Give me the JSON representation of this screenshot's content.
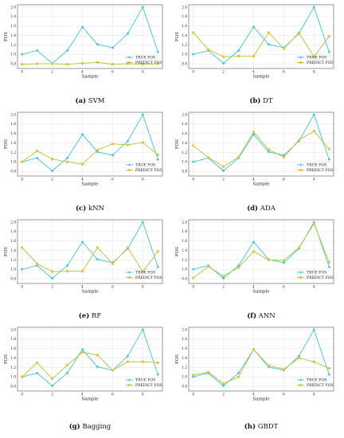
{
  "chart_data": [
    {
      "id": "svm",
      "caption_letter": "(a)",
      "caption_name": "SVM",
      "type": "line",
      "xlabel": "Sample",
      "ylabel": "FOS",
      "xlim": [
        -0.3,
        9.3
      ],
      "ylim": [
        0.7,
        2.05
      ],
      "xticks": [
        0,
        2,
        4,
        6,
        8
      ],
      "yticks": [
        0.8,
        1.0,
        1.2,
        1.4,
        1.6,
        1.8,
        2.0
      ],
      "legend_position": "bottom-right",
      "x": [
        0,
        1,
        2,
        3,
        4,
        5,
        6,
        7,
        8,
        9
      ],
      "series": [
        {
          "name": "TRUE FOS",
          "values": [
            1.0,
            1.08,
            0.81,
            1.08,
            1.58,
            1.21,
            1.14,
            1.44,
            2.0,
            1.05
          ]
        },
        {
          "name": "PREDICT FOS",
          "values": [
            0.79,
            0.8,
            0.8,
            0.79,
            0.81,
            0.83,
            0.79,
            0.8,
            0.79,
            0.8
          ]
        }
      ]
    },
    {
      "id": "dt",
      "caption_letter": "(b)",
      "caption_name": "DT",
      "type": "line",
      "xlabel": "Sample",
      "ylabel": "FOS",
      "xlim": [
        -0.3,
        9.3
      ],
      "ylim": [
        0.7,
        2.05
      ],
      "xticks": [
        0,
        2,
        4,
        6,
        8
      ],
      "yticks": [
        0.8,
        1.0,
        1.2,
        1.4,
        1.6,
        1.8,
        2.0
      ],
      "legend_position": "bottom-right",
      "x": [
        0,
        1,
        2,
        3,
        4,
        5,
        6,
        7,
        8,
        9
      ],
      "series": [
        {
          "name": "TRUE FOS",
          "values": [
            1.0,
            1.08,
            0.81,
            1.08,
            1.58,
            1.21,
            1.14,
            1.44,
            2.0,
            1.05
          ]
        },
        {
          "name": "PREDICT FOS",
          "values": [
            1.46,
            1.1,
            0.95,
            0.96,
            0.96,
            1.46,
            1.12,
            1.46,
            0.95,
            1.38
          ]
        }
      ]
    },
    {
      "id": "knn",
      "caption_letter": "(c)",
      "caption_name": "kNN",
      "type": "line",
      "xlabel": "Sample",
      "ylabel": "FOS",
      "xlim": [
        -0.3,
        9.3
      ],
      "ylim": [
        0.7,
        2.05
      ],
      "xticks": [
        0,
        2,
        4,
        6,
        8
      ],
      "yticks": [
        0.8,
        1.0,
        1.2,
        1.4,
        1.6,
        1.8,
        2.0
      ],
      "legend_position": "bottom-right",
      "x": [
        0,
        1,
        2,
        3,
        4,
        5,
        6,
        7,
        8,
        9
      ],
      "series": [
        {
          "name": "TRUE FOS",
          "values": [
            1.0,
            1.08,
            0.81,
            1.08,
            1.58,
            1.21,
            1.14,
            1.44,
            2.0,
            1.05
          ]
        },
        {
          "name": "PREDICT FOS",
          "values": [
            1.0,
            1.23,
            1.06,
            1.0,
            0.95,
            1.25,
            1.38,
            1.36,
            1.41,
            1.15
          ]
        }
      ]
    },
    {
      "id": "ada",
      "caption_letter": "(d)",
      "caption_name": "ADA",
      "type": "line",
      "xlabel": "Sample",
      "ylabel": "FOS",
      "xlim": [
        -0.3,
        9.3
      ],
      "ylim": [
        0.7,
        2.05
      ],
      "xticks": [
        0,
        2,
        4,
        6,
        8
      ],
      "yticks": [
        0.8,
        1.0,
        1.2,
        1.4,
        1.6,
        1.8,
        2.0
      ],
      "legend_position": "bottom-right",
      "x": [
        0,
        1,
        2,
        3,
        4,
        5,
        6,
        7,
        8,
        9
      ],
      "series": [
        {
          "name": "TRUE FOS",
          "values": [
            1.0,
            1.08,
            0.81,
            1.08,
            1.58,
            1.21,
            1.14,
            1.44,
            2.0,
            1.05
          ]
        },
        {
          "name": "PREDICT FOS",
          "values": [
            1.34,
            1.09,
            0.9,
            1.1,
            1.63,
            1.26,
            1.1,
            1.46,
            1.65,
            1.27
          ]
        }
      ]
    },
    {
      "id": "rf",
      "caption_letter": "(e)",
      "caption_name": "RF",
      "type": "line",
      "xlabel": "Sample",
      "ylabel": "FOS",
      "xlim": [
        -0.3,
        9.3
      ],
      "ylim": [
        0.7,
        2.05
      ],
      "xticks": [
        0,
        2,
        4,
        6,
        8
      ],
      "yticks": [
        0.8,
        1.0,
        1.2,
        1.4,
        1.6,
        1.8,
        2.0
      ],
      "legend_position": "bottom-right",
      "x": [
        0,
        1,
        2,
        3,
        4,
        5,
        6,
        7,
        8,
        9
      ],
      "series": [
        {
          "name": "TRUE FOS",
          "values": [
            1.0,
            1.08,
            0.81,
            1.08,
            1.58,
            1.21,
            1.14,
            1.44,
            2.0,
            1.05
          ]
        },
        {
          "name": "PREDICT FOS",
          "values": [
            1.46,
            1.12,
            0.95,
            0.96,
            0.96,
            1.46,
            1.12,
            1.46,
            0.95,
            1.38
          ]
        }
      ]
    },
    {
      "id": "ann",
      "caption_letter": "(f)",
      "caption_name": "ANN",
      "type": "line",
      "xlabel": "Sample",
      "ylabel": "FOS",
      "xlim": [
        -0.3,
        9.3
      ],
      "ylim": [
        0.7,
        2.05
      ],
      "xticks": [
        0,
        2,
        4,
        6,
        8
      ],
      "yticks": [
        0.8,
        1.0,
        1.2,
        1.4,
        1.6,
        1.8,
        2.0
      ],
      "legend_position": "bottom-right",
      "x": [
        0,
        1,
        2,
        3,
        4,
        5,
        6,
        7,
        8,
        9
      ],
      "series": [
        {
          "name": "TRUE FOS",
          "values": [
            1.0,
            1.08,
            0.81,
            1.08,
            1.58,
            1.21,
            1.14,
            1.44,
            2.0,
            1.05
          ]
        },
        {
          "name": "PREDICT FOS",
          "values": [
            0.82,
            1.06,
            0.86,
            1.04,
            1.38,
            1.2,
            1.19,
            1.46,
            1.97,
            1.15
          ]
        }
      ]
    },
    {
      "id": "bagging",
      "caption_letter": "(g)",
      "caption_name": "Bagging",
      "type": "line",
      "xlabel": "Sample",
      "ylabel": "FOS",
      "xlim": [
        -0.3,
        9.3
      ],
      "ylim": [
        0.7,
        2.05
      ],
      "xticks": [
        0,
        2,
        4,
        6,
        8
      ],
      "yticks": [
        0.8,
        1.0,
        1.2,
        1.4,
        1.6,
        1.8,
        2.0
      ],
      "legend_position": "bottom-right",
      "x": [
        0,
        1,
        2,
        3,
        4,
        5,
        6,
        7,
        8,
        9
      ],
      "series": [
        {
          "name": "TRUE FOS",
          "values": [
            1.0,
            1.08,
            0.81,
            1.08,
            1.58,
            1.21,
            1.14,
            1.44,
            2.0,
            1.05
          ]
        },
        {
          "name": "PREDICT FOS",
          "values": [
            1.0,
            1.3,
            0.96,
            1.25,
            1.52,
            1.46,
            1.14,
            1.32,
            1.32,
            1.3
          ]
        }
      ]
    },
    {
      "id": "gbdt",
      "caption_letter": "(h)",
      "caption_name": "GBDT",
      "type": "line",
      "xlabel": "Sample",
      "ylabel": "FOS",
      "xlim": [
        -0.3,
        9.3
      ],
      "ylim": [
        0.7,
        2.05
      ],
      "xticks": [
        0,
        2,
        4,
        6,
        8
      ],
      "yticks": [
        0.8,
        1.0,
        1.2,
        1.4,
        1.6,
        1.8,
        2.0
      ],
      "legend_position": "bottom-right",
      "x": [
        0,
        1,
        2,
        3,
        4,
        5,
        6,
        7,
        8,
        9
      ],
      "series": [
        {
          "name": "TRUE FOS",
          "values": [
            1.0,
            1.08,
            0.81,
            1.08,
            1.58,
            1.21,
            1.14,
            1.44,
            2.0,
            1.05
          ]
        },
        {
          "name": "PREDICT FOS",
          "values": [
            1.04,
            1.1,
            0.86,
            1.0,
            1.58,
            1.24,
            1.16,
            1.4,
            1.32,
            1.18
          ]
        }
      ]
    }
  ],
  "colors": {
    "true_series": "#3ec6d8",
    "predict_series": "#b5c233",
    "predict_marker": "#e6c23c",
    "axis": "#555555",
    "grid": "#dddddd"
  }
}
